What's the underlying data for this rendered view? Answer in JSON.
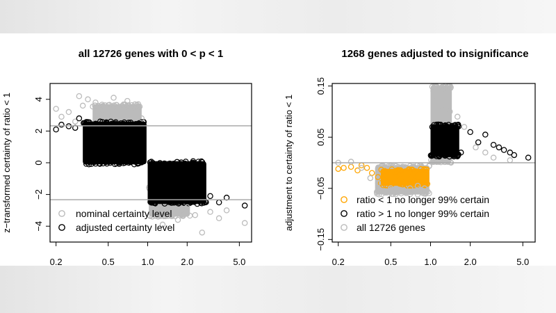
{
  "chart_data": [
    {
      "type": "scatter",
      "title": "all 12726 genes with 0 < p < 1",
      "xlabel": "",
      "ylabel": "z−transformed certainty of ratio < 1",
      "x_scale": "log",
      "xlim": [
        0.18,
        6.2
      ],
      "ylim": [
        -5.0,
        5.0
      ],
      "x_ticks": [
        0.2,
        0.5,
        1.0,
        2.0,
        5.0
      ],
      "x_tick_labels": [
        "0.2",
        "0.5",
        "1.0",
        "2.0",
        "5.0"
      ],
      "y_ticks": [
        -4,
        -2,
        0,
        2,
        4
      ],
      "y_tick_labels": [
        "−4",
        "−2",
        "0",
        "2",
        "4"
      ],
      "hlines": [
        2.33,
        -2.33
      ],
      "legend_position": "bottom-left",
      "series": [
        {
          "name": "nominal certainty level",
          "color": "#bbbbbb",
          "points": [
            [
              0.2,
              3.4
            ],
            [
              0.22,
              2.9
            ],
            [
              0.25,
              3.2
            ],
            [
              0.28,
              2.6
            ],
            [
              0.3,
              4.2
            ],
            [
              0.32,
              3.6
            ],
            [
              0.35,
              4.0
            ],
            [
              0.4,
              3.8
            ],
            [
              0.45,
              3.3
            ],
            [
              0.5,
              3.0
            ],
            [
              0.55,
              4.1
            ],
            [
              0.6,
              3.4
            ],
            [
              0.7,
              3.9
            ],
            [
              0.8,
              3.5
            ],
            [
              0.9,
              2.8
            ],
            [
              1.1,
              -2.9
            ],
            [
              1.2,
              -3.4
            ],
            [
              1.3,
              -3.9
            ],
            [
              1.5,
              -3.2
            ],
            [
              1.7,
              -3.6
            ],
            [
              2.0,
              -2.8
            ],
            [
              2.3,
              -3.3
            ],
            [
              2.6,
              -4.4
            ],
            [
              3.0,
              -3.1
            ],
            [
              3.5,
              -3.5
            ],
            [
              4.0,
              -3.0
            ],
            [
              5.5,
              -3.8
            ]
          ]
        },
        {
          "name": "adjusted certainty level",
          "color": "#000000",
          "points": [
            [
              0.2,
              2.1
            ],
            [
              0.22,
              2.4
            ],
            [
              0.25,
              2.3
            ],
            [
              0.28,
              2.2
            ],
            [
              0.3,
              2.8
            ],
            [
              0.33,
              2.5
            ],
            [
              0.36,
              2.1
            ],
            [
              0.4,
              1.9
            ],
            [
              0.45,
              1.6
            ],
            [
              0.5,
              1.0
            ],
            [
              0.55,
              0.7
            ],
            [
              0.6,
              1.3
            ],
            [
              0.7,
              0.9
            ],
            [
              0.8,
              0.5
            ],
            [
              0.9,
              0.3
            ],
            [
              1.1,
              -0.5
            ],
            [
              1.2,
              -1.0
            ],
            [
              1.3,
              -1.2
            ],
            [
              1.5,
              -1.6
            ],
            [
              1.7,
              -1.9
            ],
            [
              2.0,
              -2.0
            ],
            [
              2.3,
              -2.2
            ],
            [
              2.6,
              -2.4
            ],
            [
              3.0,
              -2.1
            ],
            [
              3.5,
              -2.5
            ],
            [
              4.0,
              -2.2
            ],
            [
              5.5,
              -2.7
            ]
          ]
        }
      ],
      "clouds": {
        "nominal_left": {
          "x": [
            0.38,
            0.9
          ],
          "y": [
            1.6,
            3.7
          ]
        },
        "nominal_right": {
          "x": [
            1.02,
            2.1
          ],
          "y": [
            -3.4,
            -1.5
          ]
        },
        "adjusted_left": {
          "x": [
            0.32,
            0.98
          ],
          "y": [
            -0.1,
            2.6
          ]
        },
        "adjusted_right": {
          "x": [
            1.0,
            2.8
          ],
          "y": [
            -2.6,
            0.1
          ]
        }
      }
    },
    {
      "type": "scatter",
      "title": "1268 genes adjusted to insignificance",
      "xlabel": "",
      "ylabel": "adjustment to certainty of ratio < 1",
      "x_scale": "log",
      "xlim": [
        0.18,
        6.2
      ],
      "ylim": [
        -0.155,
        0.155
      ],
      "x_ticks": [
        0.2,
        0.5,
        1.0,
        2.0,
        5.0
      ],
      "x_tick_labels": [
        "0.2",
        "0.5",
        "1.0",
        "2.0",
        "5.0"
      ],
      "y_ticks": [
        -0.15,
        -0.05,
        0.05,
        0.15
      ],
      "y_tick_labels": [
        "−0.15",
        "−0.05",
        "0.05",
        "0.15"
      ],
      "hlines": [
        0.0
      ],
      "legend_position": "bottom-left",
      "series": [
        {
          "name": "ratio < 1 no longer 99% certain",
          "color": "#ffa500",
          "points": [
            [
              0.2,
              -0.012
            ],
            [
              0.22,
              -0.01
            ],
            [
              0.25,
              -0.008
            ],
            [
              0.28,
              -0.015
            ],
            [
              0.3,
              -0.005
            ],
            [
              0.33,
              -0.01
            ],
            [
              0.36,
              -0.02
            ],
            [
              0.4,
              -0.028
            ],
            [
              0.45,
              -0.035
            ],
            [
              0.5,
              -0.03
            ],
            [
              0.55,
              -0.025
            ],
            [
              0.6,
              -0.032
            ],
            [
              0.7,
              -0.03
            ],
            [
              0.8,
              -0.028
            ],
            [
              0.9,
              -0.033
            ]
          ]
        },
        {
          "name": "ratio > 1 no longer 99% certain",
          "color": "#000000",
          "points": [
            [
              1.1,
              0.06
            ],
            [
              1.2,
              0.03
            ],
            [
              1.3,
              0.07
            ],
            [
              1.5,
              0.05
            ],
            [
              1.7,
              0.02
            ],
            [
              2.0,
              0.06
            ],
            [
              2.3,
              0.04
            ],
            [
              2.6,
              0.055
            ],
            [
              3.0,
              0.035
            ],
            [
              3.3,
              0.03
            ],
            [
              3.6,
              0.025
            ],
            [
              4.0,
              0.02
            ],
            [
              4.3,
              0.015
            ],
            [
              5.5,
              0.01
            ]
          ]
        },
        {
          "name": "all 12726 genes",
          "color": "#bbbbbb",
          "points": [
            [
              0.2,
              0.0
            ],
            [
              0.25,
              0.002
            ],
            [
              0.3,
              -0.01
            ],
            [
              0.35,
              -0.03
            ],
            [
              0.4,
              -0.04
            ],
            [
              0.5,
              -0.05
            ],
            [
              0.6,
              -0.06
            ],
            [
              0.7,
              -0.05
            ],
            [
              0.8,
              -0.045
            ],
            [
              0.9,
              -0.05
            ],
            [
              1.05,
              0.14
            ],
            [
              1.1,
              0.12
            ],
            [
              1.2,
              0.11
            ],
            [
              1.4,
              0.1
            ],
            [
              1.6,
              0.09
            ],
            [
              1.8,
              0.07
            ],
            [
              2.2,
              0.03
            ],
            [
              2.6,
              0.02
            ],
            [
              3.0,
              0.01
            ],
            [
              4.0,
              0.005
            ]
          ]
        }
      ],
      "clouds": {
        "gray_left": {
          "x": [
            0.38,
            0.98
          ],
          "y": [
            -0.062,
            -0.005
          ]
        },
        "gray_right": {
          "x": [
            1.0,
            1.45
          ],
          "y": [
            0.0,
            0.15
          ]
        },
        "orange": {
          "x": [
            0.42,
            0.98
          ],
          "y": [
            -0.045,
            -0.012
          ]
        },
        "black": {
          "x": [
            1.0,
            1.65
          ],
          "y": [
            0.012,
            0.075
          ]
        }
      }
    }
  ]
}
